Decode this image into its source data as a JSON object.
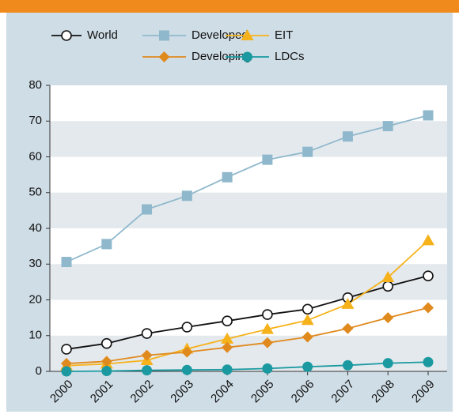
{
  "chart_data": {
    "type": "line",
    "categories": [
      "2000",
      "2001",
      "2002",
      "2003",
      "2004",
      "2005",
      "2006",
      "2007",
      "2008",
      "2009"
    ],
    "series": [
      {
        "name": "World",
        "color": "#111111",
        "marker": "circle",
        "values": [
          6.2,
          7.8,
          10.6,
          12.4,
          14.1,
          15.9,
          17.4,
          20.6,
          23.8,
          26.7
        ]
      },
      {
        "name": "Developed",
        "color": "#8fb8cc",
        "marker": "square",
        "values": [
          30.6,
          35.6,
          45.3,
          49.1,
          54.3,
          59.2,
          61.4,
          65.7,
          68.6,
          71.6
        ]
      },
      {
        "name": "EIT",
        "color": "#f6b21a",
        "marker": "triangle",
        "values": [
          1.6,
          2.1,
          3.1,
          6.3,
          9.1,
          11.8,
          14.3,
          18.8,
          26.3,
          36.6
        ]
      },
      {
        "name": "Developing",
        "color": "#e08a1e",
        "marker": "diamond",
        "values": [
          2.2,
          2.8,
          4.5,
          5.4,
          6.7,
          8.0,
          9.6,
          12.0,
          15.0,
          17.8
        ]
      },
      {
        "name": "LDCs",
        "color": "#1a9aa0",
        "marker": "dot",
        "values": [
          0.0,
          0.1,
          0.3,
          0.4,
          0.5,
          0.8,
          1.3,
          1.7,
          2.3,
          2.6
        ]
      }
    ],
    "ylim": [
      0,
      80
    ],
    "yticks": [
      0,
      10,
      20,
      30,
      40,
      50,
      60,
      70,
      80
    ],
    "grid": "bands"
  }
}
